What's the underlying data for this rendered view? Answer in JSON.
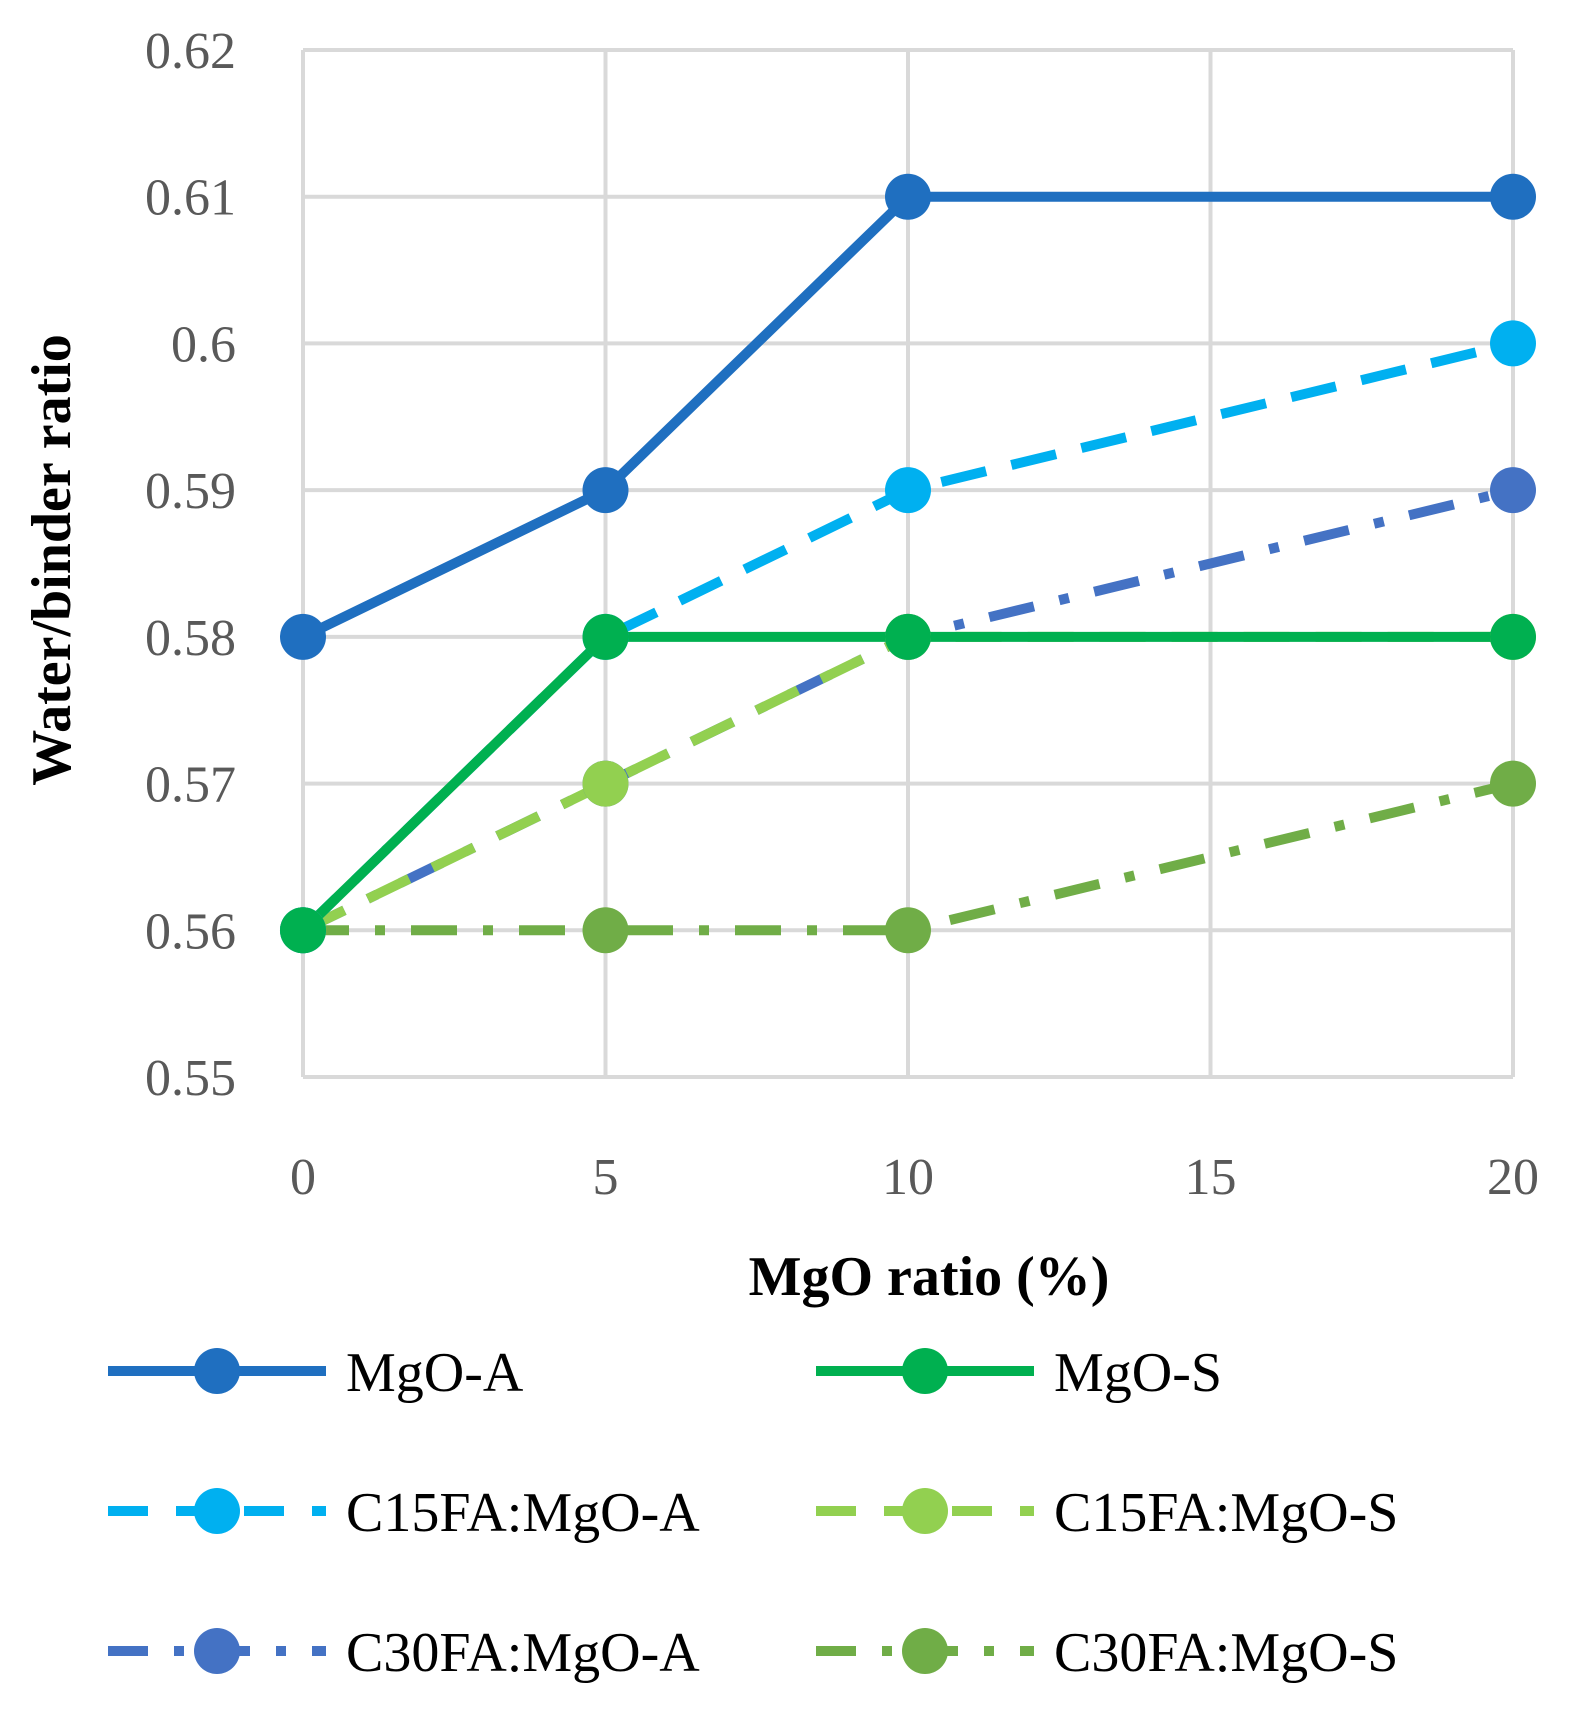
{
  "chart_data": {
    "type": "line",
    "title": "",
    "xlabel": "MgO ratio (%)",
    "ylabel": "Water/binder ratio",
    "xlim": [
      0,
      20
    ],
    "ylim": [
      0.55,
      0.62
    ],
    "grid": true,
    "x_ticks": [
      0,
      5,
      10,
      15,
      20
    ],
    "x_tick_labels": [
      "0",
      "5",
      "10",
      "15",
      "20"
    ],
    "y_ticks": [
      0.55,
      0.56,
      0.57,
      0.58,
      0.59,
      0.6,
      0.61,
      0.62
    ],
    "y_tick_labels": [
      "0.55",
      "0.56",
      "0.57",
      "0.58",
      "0.59",
      "0.6",
      "0.61",
      "0.62"
    ],
    "legend_position": "bottom",
    "x": [
      0,
      5,
      10,
      20
    ],
    "series": [
      {
        "name": "MgO-A",
        "values": [
          0.58,
          0.59,
          0.61,
          0.61
        ],
        "color": "#1f6fc0",
        "dash": "solid"
      },
      {
        "name": "MgO-S",
        "values": [
          0.56,
          0.58,
          0.58,
          0.58
        ],
        "color": "#00b050",
        "dash": "solid"
      },
      {
        "name": "C15FA:MgO-A",
        "values": [
          0.56,
          0.58,
          0.59,
          0.6
        ],
        "color": "#00b0f0",
        "dash": "dash"
      },
      {
        "name": "C15FA:MgO-S",
        "values": [
          0.56,
          0.57,
          0.58,
          0.58
        ],
        "color": "#92d050",
        "dash": "dash"
      },
      {
        "name": "C30FA:MgO-A",
        "values": [
          0.56,
          0.57,
          0.58,
          0.59
        ],
        "color": "#4472c4",
        "dash": "dashdot"
      },
      {
        "name": "C30FA:MgO-S",
        "values": [
          0.56,
          0.56,
          0.56,
          0.57
        ],
        "color": "#70ad47",
        "dash": "dashdot"
      }
    ]
  }
}
